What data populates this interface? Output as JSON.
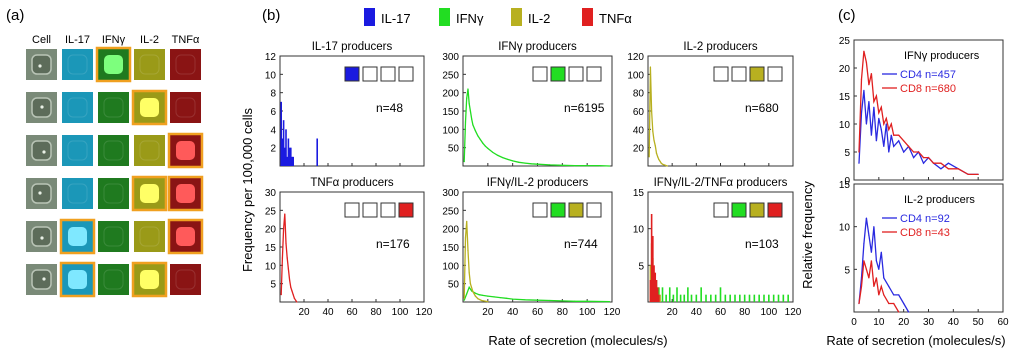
{
  "panel_labels": {
    "a": "(a)",
    "b": "(b)",
    "c": "(c)"
  },
  "panel_a": {
    "columns": [
      "Cell",
      "IL-17",
      "IFNγ",
      "IL-2",
      "TNFα"
    ],
    "column_colors": [
      "#7a8a78",
      "#1b97b8",
      "#1f7a1f",
      "#9a9a18",
      "#8a1414"
    ],
    "highlight_color": "#f0a020",
    "rows": [
      {
        "bright": [
          false,
          true,
          false,
          false
        ]
      },
      {
        "bright": [
          false,
          false,
          true,
          false
        ]
      },
      {
        "bright": [
          false,
          false,
          false,
          true
        ]
      },
      {
        "bright": [
          false,
          false,
          true,
          true
        ]
      },
      {
        "bright": [
          true,
          false,
          false,
          true
        ]
      },
      {
        "bright": [
          true,
          false,
          true,
          false
        ]
      }
    ]
  },
  "legend": [
    {
      "name": "IL-17",
      "color": "#1a1ae0"
    },
    {
      "name": "IFNγ",
      "color": "#22dd22"
    },
    {
      "name": "IL-2",
      "color": "#b8b020"
    },
    {
      "name": "TNFα",
      "color": "#e02020"
    }
  ],
  "panel_b": {
    "ylabel": "Frequency per 100,000 cells",
    "xlabel": "Rate of secretion (molecules/s)",
    "x_ticks": [
      20,
      40,
      60,
      80,
      100,
      120
    ]
  },
  "panel_c": {
    "ylabel": "Relative frequency",
    "xlabel": "Rate of secretion (molecules/s)",
    "x_ticks": [
      0,
      10,
      20,
      30,
      40,
      50,
      60
    ]
  },
  "chart_data": [
    {
      "type": "bar",
      "title": "IL-17 producers",
      "count": "n=48",
      "squares": [
        "#1a1ae0",
        "",
        "",
        ""
      ],
      "ylim": [
        0,
        12
      ],
      "yticks": [
        2,
        4,
        6,
        8,
        10,
        12
      ],
      "xlim": [
        0,
        120
      ],
      "series": [
        {
          "name": "IL-17",
          "color": "#1a1ae0",
          "x": [
            1,
            2,
            3,
            4,
            5,
            6,
            7,
            8,
            9,
            10,
            11,
            31
          ],
          "values": [
            7,
            3,
            5,
            2,
            4,
            1,
            3,
            2,
            2,
            1,
            1,
            3
          ]
        }
      ]
    },
    {
      "type": "line",
      "title": "IFNγ producers",
      "count": "n=6195",
      "squares": [
        "",
        "#22dd22",
        "",
        ""
      ],
      "ylim": [
        0,
        300
      ],
      "yticks": [
        50,
        100,
        150,
        200,
        250,
        300
      ],
      "xlim": [
        0,
        120
      ],
      "series": [
        {
          "name": "IFNγ",
          "color": "#22dd22",
          "x": [
            1,
            2,
            3,
            4,
            5,
            6,
            7,
            8,
            10,
            12,
            14,
            16,
            18,
            20,
            24,
            28,
            32,
            36,
            40,
            45,
            50,
            55,
            60,
            70,
            80,
            90,
            100,
            110,
            118
          ],
          "values": [
            12,
            120,
            185,
            210,
            170,
            150,
            128,
            112,
            96,
            82,
            72,
            62,
            54,
            48,
            37,
            29,
            23,
            18,
            14,
            10,
            8,
            6,
            5,
            3,
            2,
            1,
            1,
            1,
            0
          ]
        }
      ]
    },
    {
      "type": "line",
      "title": "IL-2 producers",
      "count": "n=680",
      "squares": [
        "",
        "",
        "#b8b020",
        ""
      ],
      "ylim": [
        0,
        120
      ],
      "yticks": [
        20,
        40,
        60,
        80,
        100,
        120
      ],
      "xlim": [
        0,
        120
      ],
      "series": [
        {
          "name": "IL-2",
          "color": "#b8b020",
          "x": [
            1,
            2,
            3,
            4,
            5,
            6,
            7,
            8,
            9,
            10,
            11,
            12,
            14,
            16
          ],
          "values": [
            10,
            108,
            60,
            38,
            28,
            22,
            14,
            10,
            7,
            5,
            3,
            2,
            1,
            0
          ]
        }
      ]
    },
    {
      "type": "line",
      "title": "TNFα producers",
      "count": "n=176",
      "squares": [
        "",
        "",
        "",
        "#e02020"
      ],
      "ylim": [
        0,
        30
      ],
      "yticks": [
        5,
        10,
        15,
        20,
        25,
        30
      ],
      "xlim": [
        0,
        120
      ],
      "series": [
        {
          "name": "TNFα",
          "color": "#e02020",
          "x": [
            1,
            2,
            3,
            4,
            5,
            6,
            7,
            8,
            9,
            10,
            11,
            12,
            14
          ],
          "values": [
            2,
            12,
            20,
            24,
            16,
            12,
            9,
            6,
            4,
            3,
            2,
            1,
            0
          ]
        }
      ]
    },
    {
      "type": "line",
      "title": "IFNγ/IL-2 producers",
      "count": "n=744",
      "squares": [
        "",
        "#22dd22",
        "#b8b020",
        ""
      ],
      "ylim": [
        0,
        300
      ],
      "yticks": [
        50,
        100,
        150,
        200,
        250,
        300
      ],
      "xlim": [
        0,
        120
      ],
      "series": [
        {
          "name": "IFNγ",
          "color": "#22dd22",
          "x": [
            1,
            3,
            5,
            7,
            10,
            13,
            16,
            20,
            25,
            30,
            35,
            40,
            50,
            60,
            70,
            80,
            90,
            100,
            118
          ],
          "values": [
            5,
            22,
            40,
            30,
            24,
            20,
            18,
            16,
            14,
            12,
            10,
            8,
            6,
            5,
            4,
            3,
            2,
            2,
            1
          ]
        },
        {
          "name": "IL-2",
          "color": "#b8b020",
          "x": [
            1,
            2,
            3,
            4,
            5,
            6,
            8,
            10,
            12,
            15,
            20
          ],
          "values": [
            10,
            175,
            220,
            140,
            80,
            50,
            28,
            16,
            9,
            4,
            1
          ]
        }
      ]
    },
    {
      "type": "bar",
      "title": "IFNγ/IL-2/TNFα producers",
      "count": "n=103",
      "squares": [
        "",
        "#22dd22",
        "#b8b020",
        "#e02020"
      ],
      "ylim": [
        0,
        15
      ],
      "yticks": [
        5,
        10,
        15
      ],
      "xlim": [
        0,
        120
      ],
      "series": [
        {
          "name": "IFNγ",
          "color": "#22dd22",
          "x": [
            3,
            7,
            9,
            12,
            15,
            18,
            21,
            24,
            27,
            30,
            33,
            36,
            40,
            44,
            48,
            52,
            56,
            60,
            64,
            68,
            72,
            76,
            80,
            84,
            88,
            92,
            96,
            100,
            104,
            108,
            112,
            116
          ],
          "values": [
            2,
            3,
            2,
            2,
            1,
            2,
            1,
            2,
            1,
            1,
            2,
            1,
            1,
            2,
            1,
            1,
            1,
            2,
            1,
            1,
            1,
            1,
            1,
            1,
            1,
            1,
            1,
            1,
            1,
            1,
            1,
            1
          ]
        },
        {
          "name": "IL-2",
          "color": "#b8b020",
          "x": [
            2,
            3,
            4,
            5,
            6,
            8,
            10
          ],
          "values": [
            5,
            8,
            6,
            4,
            3,
            2,
            1
          ]
        },
        {
          "name": "TNFα",
          "color": "#e02020",
          "x": [
            2,
            3,
            4,
            5,
            6,
            7,
            8,
            9
          ],
          "values": [
            3,
            12,
            9,
            5,
            4,
            3,
            2,
            1
          ]
        }
      ]
    },
    {
      "type": "line",
      "title": "IFNγ producers",
      "ylim": [
        0,
        25
      ],
      "yticks": [
        0,
        5,
        10,
        15,
        20,
        25
      ],
      "xlim": [
        0,
        60
      ],
      "series": [
        {
          "name": "CD4 n=457",
          "color": "#2a2ae0",
          "x": [
            2,
            3,
            4,
            5,
            6,
            7,
            8,
            9,
            10,
            11,
            12,
            13,
            14,
            15,
            16,
            18,
            20,
            22,
            24,
            26,
            28,
            30,
            32,
            35,
            38,
            42,
            46,
            50
          ],
          "values": [
            3,
            12,
            16,
            10,
            14,
            8,
            13,
            7,
            11,
            9,
            6,
            10,
            5,
            8,
            6,
            7,
            5,
            6,
            4,
            5,
            3,
            4,
            3,
            2,
            3,
            2,
            1,
            1
          ]
        },
        {
          "name": "CD8 n=680",
          "color": "#e02020",
          "x": [
            2,
            3,
            4,
            5,
            6,
            7,
            8,
            9,
            10,
            11,
            12,
            13,
            14,
            15,
            16,
            18,
            20,
            22,
            24,
            26,
            28,
            30,
            32,
            35,
            38,
            42,
            46,
            50
          ],
          "values": [
            5,
            18,
            23,
            21,
            17,
            19,
            14,
            15,
            12,
            13,
            10,
            11,
            9,
            10,
            8,
            8,
            7,
            6,
            5,
            5,
            4,
            4,
            3,
            3,
            2,
            2,
            1,
            1
          ]
        }
      ]
    },
    {
      "type": "line",
      "title": "IL-2 producers",
      "ylim": [
        0,
        15
      ],
      "yticks": [
        5,
        10,
        15
      ],
      "xlim": [
        0,
        60
      ],
      "series": [
        {
          "name": "CD4 n=92",
          "color": "#2a2ae0",
          "x": [
            2,
            3,
            4,
            5,
            6,
            7,
            8,
            9,
            10,
            11,
            12,
            14,
            16,
            18,
            20,
            22
          ],
          "values": [
            1,
            4,
            8,
            11,
            9,
            7,
            10,
            6,
            5,
            7,
            4,
            3,
            2,
            2,
            1,
            0
          ]
        },
        {
          "name": "CD8 n=43",
          "color": "#e02020",
          "x": [
            2,
            3,
            4,
            5,
            6,
            7,
            8,
            9,
            10,
            11,
            12,
            14,
            16,
            18
          ],
          "values": [
            1,
            3,
            6,
            5,
            4,
            6,
            3,
            4,
            2,
            3,
            2,
            1,
            1,
            0
          ]
        }
      ]
    }
  ]
}
